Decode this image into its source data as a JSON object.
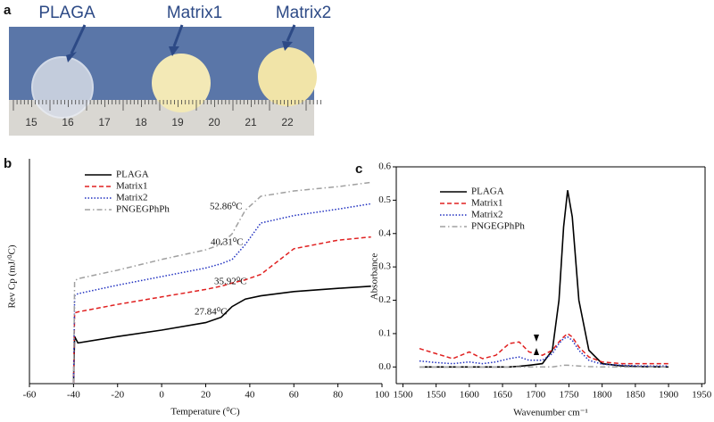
{
  "photo": {
    "panel_label": "a",
    "labels": [
      "PLAGA",
      "Matrix1",
      "Matrix2"
    ],
    "ruler_numbers": [
      "15",
      "16",
      "17",
      "18",
      "19",
      "20",
      "21",
      "22"
    ]
  },
  "chart_data": [
    {
      "type": "line",
      "panel_label": "b",
      "x_label": "Temperature (⁰C)",
      "y_label": "Rev Cp (mJ/⁰C)",
      "x": [
        -40,
        -39.5,
        -38,
        -20,
        0,
        20,
        27,
        32,
        38,
        45,
        60,
        80,
        95
      ],
      "series": [
        {
          "name": "PLAGA",
          "color": "#000000",
          "linestyle": "solid",
          "values": [
            0,
            2.2,
            1.9,
            2.2,
            2.5,
            2.85,
            3.1,
            3.6,
            3.95,
            4.1,
            4.3,
            4.45,
            4.55
          ]
        },
        {
          "name": "Matrix1",
          "color": "#e02020",
          "linestyle": "dashed",
          "values": [
            0,
            3.3,
            3.35,
            3.7,
            4.05,
            4.4,
            4.55,
            4.7,
            4.85,
            5.1,
            6.3,
            6.7,
            6.85
          ]
        },
        {
          "name": "Matrix2",
          "color": "#2030c0",
          "linestyle": "dotted",
          "values": [
            0,
            4.1,
            4.2,
            4.6,
            5.0,
            5.4,
            5.6,
            5.8,
            6.5,
            7.5,
            7.85,
            8.15,
            8.4
          ]
        },
        {
          "name": "PNGEGPhPh",
          "color": "#a0a0a0",
          "linestyle": "dashdot",
          "values": [
            0,
            4.8,
            4.9,
            5.3,
            5.8,
            6.25,
            6.5,
            7.0,
            8.1,
            8.75,
            9.0,
            9.2,
            9.4
          ]
        }
      ],
      "annotations": [
        "52.86⁰C",
        "40.31⁰C",
        "35.92⁰C",
        "27.84⁰C"
      ],
      "xlim": [
        -60,
        100
      ],
      "xticks": [
        -60,
        -40,
        -20,
        0,
        20,
        40,
        60,
        80,
        100
      ],
      "ylim": [
        0,
        10
      ],
      "legend": "upper left",
      "frame": false
    },
    {
      "type": "line",
      "panel_label": "c",
      "x_label": "Wavenumber cm⁻¹",
      "y_label": "Absorbance",
      "x": [
        1525,
        1550,
        1575,
        1600,
        1620,
        1640,
        1660,
        1675,
        1690,
        1710,
        1725,
        1735,
        1742,
        1748,
        1755,
        1765,
        1780,
        1800,
        1830,
        1860,
        1900
      ],
      "series": [
        {
          "name": "PLAGA",
          "color": "#000000",
          "linestyle": "solid",
          "values": [
            0,
            0,
            0,
            0,
            0,
            0,
            0,
            0.002,
            0.005,
            0.01,
            0.05,
            0.2,
            0.42,
            0.53,
            0.45,
            0.2,
            0.05,
            0.01,
            0.003,
            0.001,
            0
          ]
        },
        {
          "name": "Matrix1",
          "color": "#e02020",
          "linestyle": "dashed",
          "values": [
            0.055,
            0.04,
            0.025,
            0.045,
            0.025,
            0.035,
            0.07,
            0.075,
            0.045,
            0.035,
            0.05,
            0.075,
            0.09,
            0.1,
            0.09,
            0.06,
            0.03,
            0.015,
            0.01,
            0.01,
            0.01
          ]
        },
        {
          "name": "Matrix2",
          "color": "#2030c0",
          "linestyle": "dotted",
          "values": [
            0.018,
            0.013,
            0.01,
            0.015,
            0.01,
            0.015,
            0.025,
            0.03,
            0.02,
            0.02,
            0.04,
            0.07,
            0.085,
            0.09,
            0.08,
            0.05,
            0.02,
            0.008,
            0.005,
            0.003,
            0.003
          ]
        },
        {
          "name": "PNGEGPhPh",
          "color": "#a0a0a0",
          "linestyle": "dashdot",
          "values": [
            0,
            0,
            0,
            0,
            0,
            0,
            0,
            0,
            0,
            0,
            0,
            0.003,
            0.005,
            0.005,
            0.004,
            0.003,
            0.001,
            0,
            0,
            0,
            0
          ]
        }
      ],
      "xlim": [
        1490,
        1955
      ],
      "xticks": [
        1500,
        1550,
        1600,
        1650,
        1700,
        1750,
        1800,
        1850,
        1900,
        1950
      ],
      "ylim": [
        -0.05,
        0.6
      ],
      "yticks": [
        {
          "value": 0,
          "label": "0.0"
        },
        0.1,
        0.2,
        0.3,
        0.4,
        0.5,
        0.6
      ],
      "legend": "upper left",
      "frame": true
    }
  ]
}
